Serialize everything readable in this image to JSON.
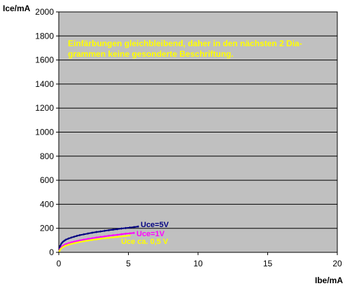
{
  "chart_data": {
    "type": "scatter",
    "title": "",
    "xlabel": "Ibe/mA",
    "ylabel": "Ice/mA",
    "xlim": [
      0,
      20
    ],
    "ylim": [
      0,
      2000
    ],
    "x_ticks": [
      "0",
      "5",
      "10",
      "15",
      "20"
    ],
    "y_ticks": [
      "0",
      "200",
      "400",
      "600",
      "800",
      "1000",
      "1200",
      "1400",
      "1600",
      "1800",
      "2000"
    ],
    "grid": "horizontal",
    "plot_background": "#c0c0c0",
    "annotation": {
      "text": "Einfärbungen gleichbleibend, daher in den nächsten 2 Dia-",
      "text2": "grammen keine gesonderte Beschriftung.",
      "color": "#ffff00"
    },
    "series": [
      {
        "name": "Uce=5V",
        "color": "#000080",
        "x": [
          0.05,
          0.1,
          0.2,
          0.3,
          0.4,
          0.5,
          0.7,
          0.9,
          1.1,
          1.3,
          1.5,
          1.8,
          2.1,
          2.4,
          2.7,
          3.0,
          3.3,
          3.6,
          3.9,
          4.2,
          4.5,
          4.8,
          5.1,
          5.4,
          5.7
        ],
        "y": [
          30,
          55,
          75,
          88,
          97,
          105,
          115,
          123,
          130,
          137,
          143,
          150,
          157,
          163,
          169,
          174,
          179,
          184,
          189,
          193,
          198,
          202,
          206,
          210,
          215
        ]
      },
      {
        "name": "Uce=1V",
        "color": "#ff00ff",
        "x": [
          0.05,
          0.1,
          0.2,
          0.3,
          0.4,
          0.5,
          0.7,
          0.9,
          1.1,
          1.3,
          1.5,
          1.8,
          2.1,
          2.4,
          2.7,
          3.0,
          3.3,
          3.6,
          3.9,
          4.2,
          4.5,
          4.8,
          5.1,
          5.4
        ],
        "y": [
          15,
          30,
          45,
          55,
          62,
          68,
          76,
          83,
          89,
          94,
          99,
          106,
          112,
          118,
          123,
          128,
          133,
          138,
          142,
          146,
          151,
          155,
          158,
          162
        ]
      },
      {
        "name": "Uce ca. 0,5 V",
        "color": "#ffff00",
        "x": [
          0.05,
          0.1,
          0.2,
          0.3,
          0.4,
          0.5,
          0.7,
          0.9,
          1.1,
          1.3,
          1.5,
          1.8,
          2.1,
          2.4,
          2.7,
          3.0,
          3.3,
          3.6,
          3.9,
          4.2,
          4.5,
          4.8,
          5.1
        ],
        "y": [
          10,
          22,
          35,
          44,
          50,
          56,
          64,
          70,
          76,
          81,
          86,
          92,
          98,
          103,
          108,
          113,
          117,
          121,
          125,
          129,
          132,
          136,
          140
        ]
      }
    ]
  }
}
